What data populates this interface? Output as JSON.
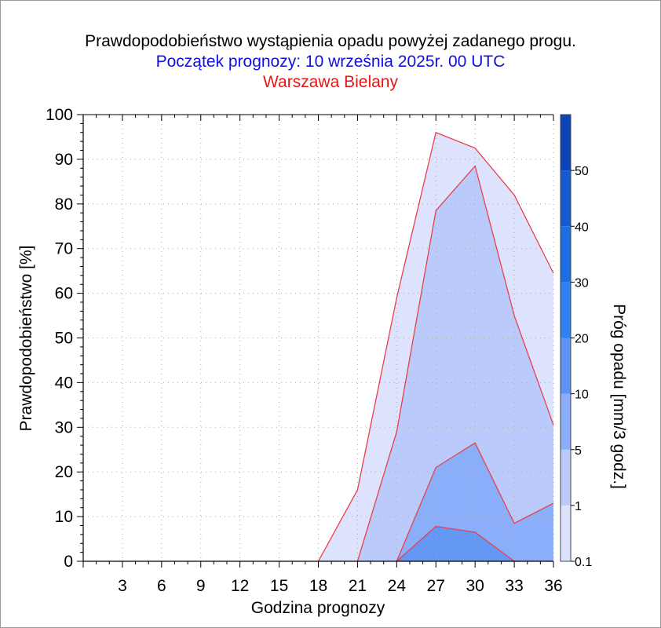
{
  "title": "Prawdopodobieństwo wystąpienia opadu powyżej zadanego progu.",
  "subtitle": "Początek prognozy: 10 września 2025r. 00 UTC",
  "station": "Warszawa Bielany",
  "colors": {
    "title": "#000000",
    "subtitle": "#1010e0",
    "station": "#e01818",
    "threshold_line": "#e8404a"
  },
  "chart_data": {
    "type": "area",
    "xlabel": "Godzina prognozy",
    "ylabel": "Prawdopodobieństwo [%]",
    "xlim": [
      0,
      36
    ],
    "ylim": [
      0,
      100
    ],
    "xticks": [
      3,
      6,
      9,
      12,
      15,
      18,
      21,
      24,
      27,
      30,
      33,
      36
    ],
    "yticks": [
      0,
      10,
      20,
      30,
      40,
      50,
      60,
      70,
      80,
      90,
      100
    ],
    "grid": true,
    "x": [
      0,
      3,
      6,
      9,
      12,
      15,
      18,
      21,
      24,
      27,
      30,
      33,
      36
    ],
    "series": [
      {
        "threshold": 0.1,
        "color": "#dde3fd",
        "values": [
          0,
          0,
          0,
          0,
          0,
          0,
          0,
          16,
          59,
          96,
          92.5,
          82,
          64.5
        ]
      },
      {
        "threshold": 1,
        "color": "#bacbfb",
        "values": [
          0,
          0,
          0,
          0,
          0,
          0,
          0,
          0,
          29,
          78.5,
          88.5,
          55,
          30.5
        ]
      },
      {
        "threshold": 5,
        "color": "#8aaef9",
        "values": [
          0,
          0,
          0,
          0,
          0,
          0,
          0,
          0,
          0,
          21,
          26.5,
          8.5,
          13
        ]
      },
      {
        "threshold": 10,
        "color": "#6597f5",
        "values": [
          0,
          0,
          0,
          0,
          0,
          0,
          0,
          0,
          0,
          7.8,
          6.5,
          0,
          0
        ]
      }
    ],
    "colorbar": {
      "label": "Próg opadu [mm/3 godz.]",
      "labels": [
        "0.1",
        "1",
        "5",
        "10",
        "20",
        "30",
        "40",
        "50"
      ],
      "colors": [
        "#dde3fd",
        "#bacbfb",
        "#8aaef9",
        "#5d93f6",
        "#2e82f4",
        "#1c6ee6",
        "#145ad2",
        "#0b44b8"
      ]
    }
  }
}
